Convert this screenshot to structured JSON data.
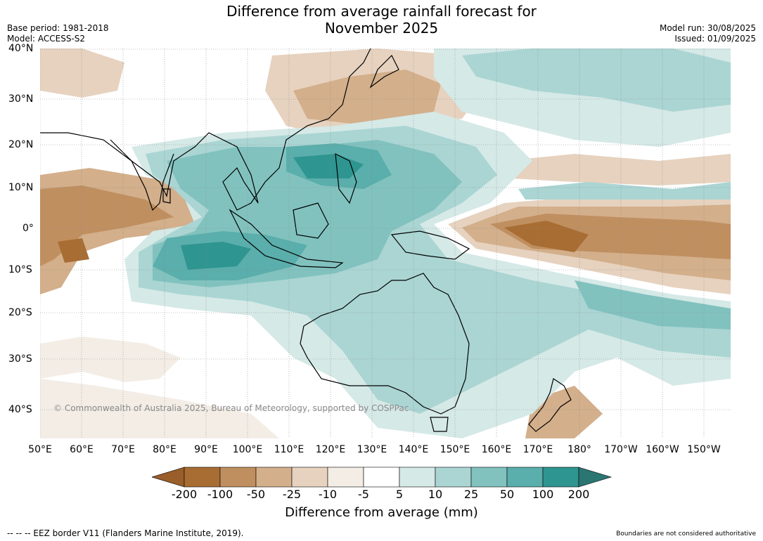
{
  "header": {
    "title_line1": "Difference from average rainfall forecast for",
    "title_line2": "November 2025",
    "base_period": "Base period: 1981-2018",
    "model": "Model: ACCESS-S2",
    "model_run": "Model run: 30/08/2025",
    "issued": "Issued: 01/09/2025"
  },
  "map": {
    "lat_labels": [
      "40°N",
      "30°N",
      "20°N",
      "10°N",
      "0°",
      "10°S",
      "20°S",
      "30°S",
      "40°S"
    ],
    "lon_labels": [
      "50°E",
      "60°E",
      "70°E",
      "80°E",
      "90°E",
      "100°E",
      "110°E",
      "120°E",
      "130°E",
      "140°E",
      "150°E",
      "160°E",
      "170°E",
      "180°",
      "170°W",
      "160°W",
      "150°W"
    ],
    "copyright": "© Commonwealth of Australia 2025, Bureau of Meteorology, supported by COSPPac",
    "land_color": "#ffffff",
    "coast_color": "#000000",
    "border_color": "#888888"
  },
  "colorbar": {
    "ticks": [
      "-200",
      "-100",
      "-50",
      "-25",
      "-10",
      "-5",
      "5",
      "10",
      "25",
      "50",
      "100",
      "200"
    ],
    "colors": [
      "#a86d33",
      "#c08f60",
      "#d3af8b",
      "#e6d2bf",
      "#f3ede6",
      "#ffffff",
      "#d5e9e7",
      "#aad5d3",
      "#81c2bf",
      "#5aaeab",
      "#2f9590"
    ],
    "under_color": "#9a5e2b",
    "over_color": "#2b7572",
    "label": "Difference from average (mm)"
  },
  "footer": {
    "eez": "--  --  -- EEZ border V11 (Flanders Marine Institute, 2019).",
    "disclaimer": "Boundaries are not considered authoritative"
  }
}
